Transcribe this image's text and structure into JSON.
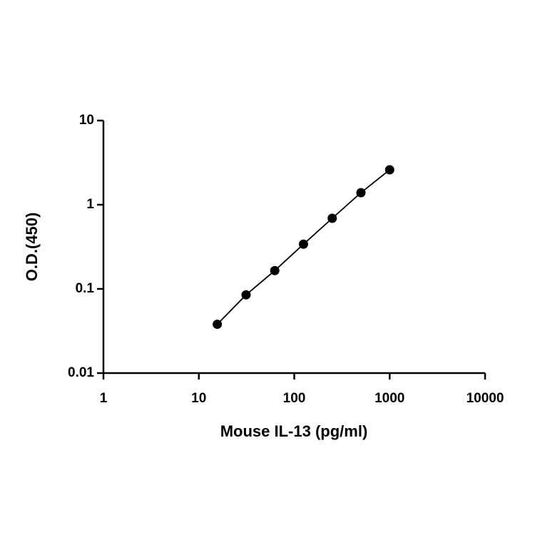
{
  "chart_data": {
    "type": "scatter",
    "x_label": "Mouse IL-13 (pg/ml)",
    "y_label": "O.D.(450)",
    "x": [
      15.6,
      31.25,
      62.5,
      125,
      250,
      500,
      1000
    ],
    "series": [
      {
        "color": "#000000",
        "values": [
          0.038,
          0.085,
          0.165,
          0.34,
          0.69,
          1.39,
          2.6
        ]
      }
    ],
    "xlim": [
      1,
      10000
    ],
    "xticks": [
      1,
      10,
      100,
      1000,
      10000
    ],
    "ylim": [
      0.01,
      10
    ],
    "yticks": [
      0.01,
      0.1,
      1,
      10
    ],
    "xscale": "log",
    "yscale": "log",
    "line": true
  }
}
